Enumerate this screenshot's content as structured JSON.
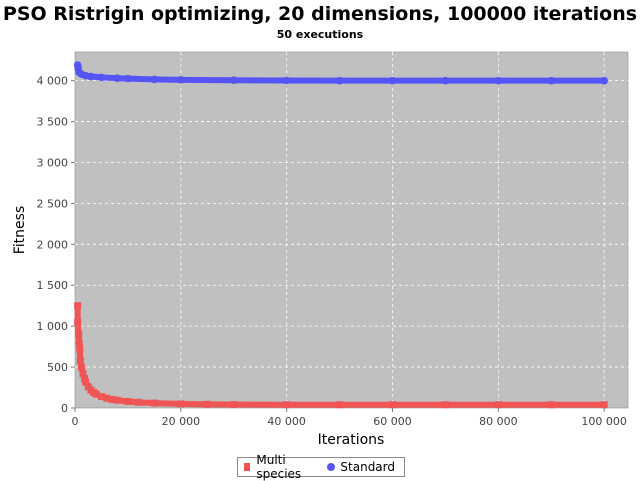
{
  "chart_data": {
    "type": "scatter",
    "title": "PSO Ristrigin optimizing, 20 dimensions, 100000 iterations",
    "subtitle": "50 executions",
    "xlabel": "Iterations",
    "ylabel": "Fitness",
    "xlim": [
      0,
      104500
    ],
    "ylim": [
      0,
      4350
    ],
    "x_ticks": [
      0,
      20000,
      40000,
      60000,
      80000,
      100000
    ],
    "x_tick_labels": [
      "0",
      "20 000",
      "40 000",
      "60 000",
      "80 000",
      "100 000"
    ],
    "y_ticks": [
      0,
      500,
      1000,
      1500,
      2000,
      2500,
      3000,
      3500,
      4000
    ],
    "y_tick_labels": [
      "0",
      "500",
      "1 000",
      "1 500",
      "2 000",
      "2 500",
      "3 000",
      "3 500",
      "4 000"
    ],
    "grid": true,
    "legend_position": "bottom",
    "series": [
      {
        "name": "Multi species",
        "color": "#f05555",
        "marker": "square",
        "points": [
          [
            500,
            1250
          ],
          [
            500,
            1050
          ],
          [
            700,
            900
          ],
          [
            800,
            790
          ],
          [
            900,
            720
          ],
          [
            1000,
            580
          ],
          [
            1200,
            500
          ],
          [
            1500,
            420
          ],
          [
            1800,
            360
          ],
          [
            2000,
            320
          ],
          [
            2500,
            260
          ],
          [
            3000,
            220
          ],
          [
            3500,
            190
          ],
          [
            4000,
            170
          ],
          [
            5000,
            140
          ],
          [
            6000,
            120
          ],
          [
            7000,
            105
          ],
          [
            8000,
            95
          ],
          [
            10000,
            80
          ],
          [
            12000,
            70
          ],
          [
            15000,
            60
          ],
          [
            20000,
            50
          ],
          [
            25000,
            45
          ],
          [
            30000,
            42
          ],
          [
            40000,
            40
          ],
          [
            50000,
            40
          ],
          [
            60000,
            40
          ],
          [
            70000,
            40
          ],
          [
            80000,
            40
          ],
          [
            90000,
            40
          ],
          [
            100000,
            40
          ]
        ]
      },
      {
        "name": "Standard",
        "color": "#5555f5",
        "marker": "circle",
        "points": [
          [
            500,
            4190
          ],
          [
            600,
            4150
          ],
          [
            800,
            4100
          ],
          [
            1200,
            4080
          ],
          [
            2000,
            4060
          ],
          [
            3000,
            4050
          ],
          [
            5000,
            4040
          ],
          [
            8000,
            4030
          ],
          [
            10000,
            4025
          ],
          [
            15000,
            4015
          ],
          [
            20000,
            4010
          ],
          [
            30000,
            4005
          ],
          [
            40000,
            4002
          ],
          [
            50000,
            4000
          ],
          [
            60000,
            4000
          ],
          [
            70000,
            4000
          ],
          [
            80000,
            4000
          ],
          [
            90000,
            4000
          ],
          [
            100000,
            4000
          ]
        ]
      }
    ]
  }
}
